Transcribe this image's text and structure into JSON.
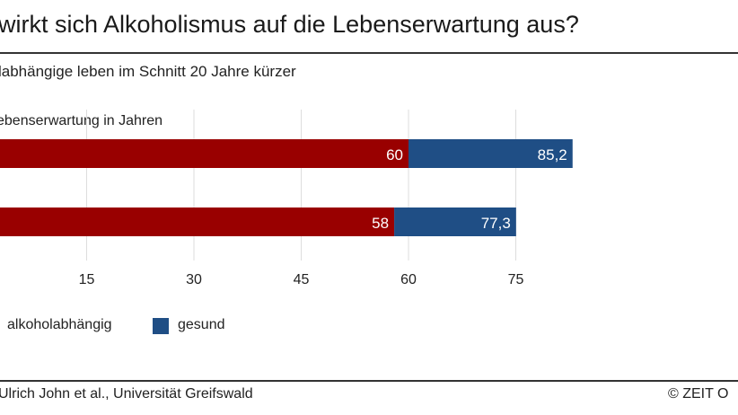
{
  "title": "wirkt sich Alkoholismus auf die Lebenserwartung aus?",
  "subtitle": "labhängige leben im Schnitt 20 Jahre kürzer",
  "source": "Ulrich John et al., Universität Greifswald",
  "credit": "© ZEIT O",
  "colors": {
    "alkoholabhaengig": "#990000",
    "gesund": "#1f4e85",
    "grid": "#dddddd"
  },
  "chart_data": {
    "type": "bar",
    "orientation": "horizontal",
    "stacked": true,
    "ylabel": "ebenserwartung in Jahren",
    "categories": [
      "",
      ""
    ],
    "series": [
      {
        "name": "alkoholabhängig",
        "values": [
          60,
          58
        ],
        "labels": [
          "60",
          "58"
        ]
      },
      {
        "name": "gesund",
        "totals": [
          85.2,
          77.3
        ],
        "labels": [
          "85,2",
          "77,3"
        ]
      }
    ],
    "xticks": [
      15,
      30,
      45,
      60,
      75
    ],
    "xlim": [
      0,
      90
    ],
    "grid": true,
    "legend": "bottom-left"
  }
}
